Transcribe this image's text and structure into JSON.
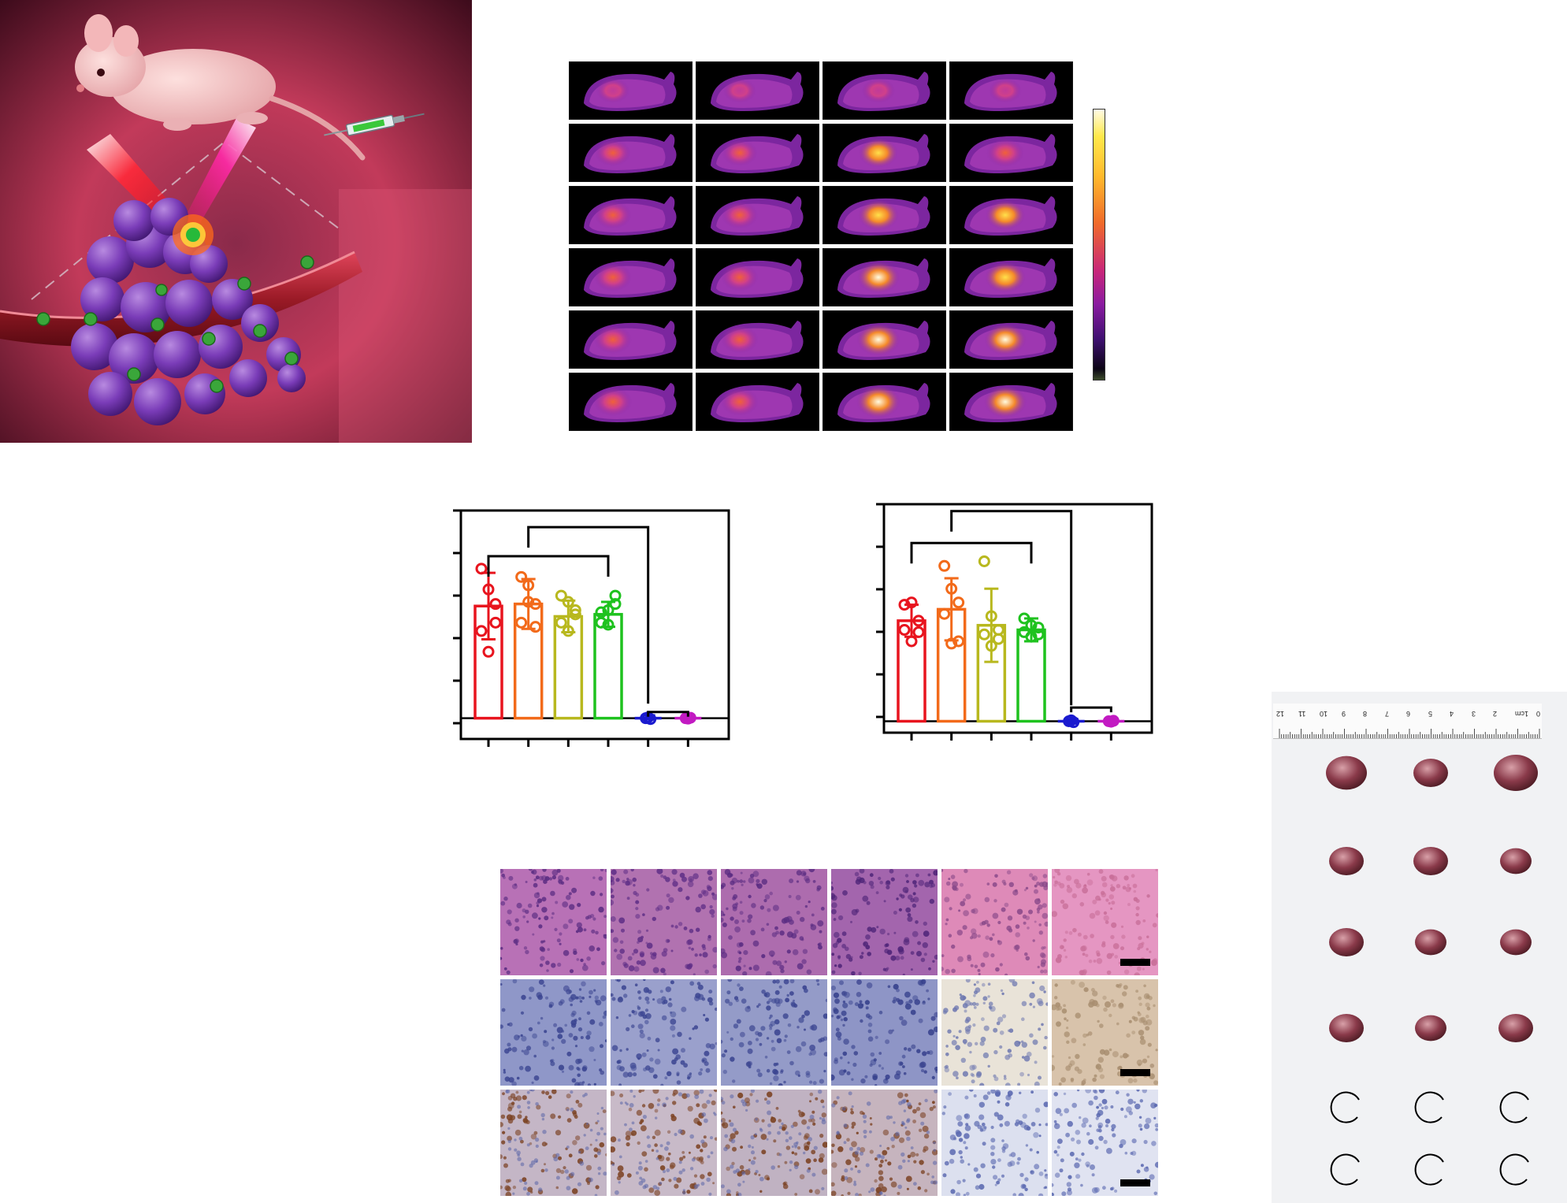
{
  "thermal": {
    "rows": 6,
    "cols": 4,
    "hot_intensity": [
      [
        0.15,
        0.12,
        0.15,
        0.12
      ],
      [
        0.35,
        0.32,
        0.62,
        0.5
      ],
      [
        0.45,
        0.38,
        0.75,
        0.65
      ],
      [
        0.5,
        0.42,
        0.88,
        0.75
      ],
      [
        0.52,
        0.45,
        0.95,
        0.85
      ],
      [
        0.55,
        0.48,
        1.0,
        0.9
      ]
    ]
  },
  "colors": {
    "groups": [
      "#e8141e",
      "#f26a1a",
      "#b8b81e",
      "#1ec21e",
      "#1a1acf",
      "#c21ac2"
    ]
  },
  "chart_data": [
    {
      "type": "bar",
      "categories": [
        "",
        "",
        "",
        "",
        "",
        ""
      ],
      "values": [
        2.7,
        2.75,
        2.45,
        2.5,
        0.02,
        0.0
      ],
      "errors": [
        0.8,
        0.6,
        0.38,
        0.3,
        0.05,
        0.05
      ],
      "points": [
        [
          3.6,
          3.1,
          2.3,
          2.1,
          1.6,
          2.75
        ],
        [
          3.4,
          3.2,
          2.75,
          2.3,
          2.8,
          2.2
        ],
        [
          2.95,
          2.8,
          2.6,
          2.3,
          2.1,
          2.5
        ],
        [
          2.55,
          2.6,
          2.75,
          2.3,
          2.25,
          2.95
        ],
        [
          0.0,
          0.02,
          -0.02
        ],
        [
          0.0,
          -0.01,
          0.01
        ]
      ],
      "ylim": [
        -0.5,
        5.0
      ],
      "brackets": [
        {
          "from": 0,
          "to": 3,
          "level": 3.9
        },
        {
          "from": 1,
          "to": 4,
          "level": 4.6
        },
        {
          "from": 4,
          "to": 5,
          "level": 0.15
        }
      ]
    },
    {
      "type": "bar",
      "categories": [
        "",
        "",
        "",
        "",
        "",
        ""
      ],
      "values": [
        2.2,
        2.45,
        2.1,
        2.0,
        0.0,
        0.0
      ],
      "errors": [
        0.35,
        0.68,
        0.8,
        0.25,
        0.05,
        0.05
      ],
      "points": [
        [
          2.55,
          2.6,
          2.2,
          2.0,
          1.75,
          1.95
        ],
        [
          3.4,
          2.9,
          2.6,
          2.35,
          1.7,
          1.75
        ],
        [
          3.5,
          2.3,
          2.0,
          1.9,
          1.65,
          1.8
        ],
        [
          2.25,
          2.1,
          2.05,
          1.95,
          1.85,
          1.9
        ],
        [
          0.0,
          0.02,
          -0.02
        ],
        [
          0.0,
          -0.01,
          0.01
        ]
      ],
      "ylim": [
        -0.25,
        4.75
      ],
      "brackets": [
        {
          "from": 0,
          "to": 3,
          "level": 3.9
        },
        {
          "from": 1,
          "to": 4,
          "level": 4.6
        },
        {
          "from": 4,
          "to": 5,
          "level": 0.3
        }
      ]
    }
  ],
  "histology": {
    "rows": [
      {
        "stain": "he",
        "base": [
          "#b871b6",
          "#b172b0",
          "#ad6cae",
          "#a365ad",
          "#de8ab8",
          "#e596c2"
        ],
        "dot": [
          "#5a2c82",
          "#5e2e86",
          "#5a2c82",
          "#4e2478",
          "#8a4a8a",
          "#c86e98"
        ]
      },
      {
        "stain": "ihc1",
        "base": [
          "#8f97c8",
          "#9aa0cc",
          "#949bc8",
          "#8e95c6",
          "#e9e3d8",
          "#d8c3ab"
        ],
        "dot": [
          "#3a4490",
          "#3c4692",
          "#3a4490",
          "#36408c",
          "#6e78b0",
          "#a88e70"
        ]
      },
      {
        "stain": "ihc2",
        "base": [
          "#c4b6c6",
          "#c8bac8",
          "#c0b2c2",
          "#c6b4be",
          "#dce0ef",
          "#e0e3f1"
        ],
        "dot": [
          "#7a4020",
          "#7c4222",
          "#7a4020",
          "#7a4020",
          "#5a68b0",
          "#5a68b0"
        ]
      }
    ]
  },
  "photo": {
    "ruler_labels": [
      "12",
      "11",
      "10",
      "9",
      "8",
      "7",
      "6",
      "5",
      "4",
      "3",
      "2",
      "1cm",
      "0"
    ],
    "tumor_rows": 6,
    "tumor_cols": 3,
    "empty_rows": [
      4,
      5
    ]
  }
}
